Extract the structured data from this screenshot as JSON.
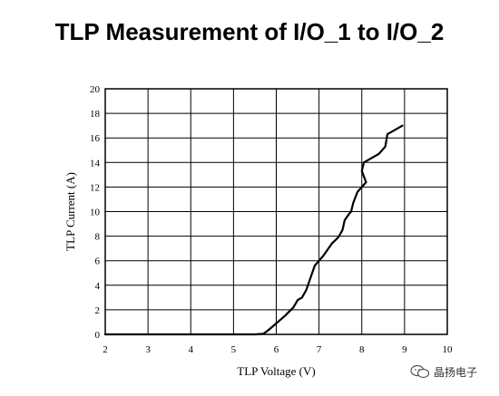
{
  "chart_data": {
    "type": "line",
    "title": "TLP Measurement of I/O_1 to I/O_2",
    "xlabel": "TLP Voltage (V)",
    "ylabel": "TLP Current (A)",
    "xlim": [
      2,
      10
    ],
    "ylim": [
      0,
      20
    ],
    "xticks": [
      "2",
      "3",
      "4",
      "5",
      "6",
      "7",
      "8",
      "9",
      "10"
    ],
    "yticks": [
      "0",
      "2",
      "4",
      "6",
      "8",
      "10",
      "12",
      "14",
      "16",
      "18",
      "20"
    ],
    "grid": true,
    "series": [
      {
        "x": [
          2.0,
          3.0,
          4.0,
          5.0,
          5.5,
          5.7,
          5.8,
          5.9,
          6.0,
          6.2,
          6.4,
          6.5,
          6.6,
          6.7,
          6.8,
          6.9,
          7.0,
          7.1,
          7.2,
          7.3,
          7.45,
          7.55,
          7.6,
          7.7,
          7.75,
          7.8,
          7.9,
          8.0,
          8.1,
          8.0,
          8.05,
          8.2,
          8.4,
          8.55,
          8.6,
          8.7,
          8.8,
          8.95
        ],
        "y": [
          0.0,
          0.0,
          0.0,
          0.0,
          0.0,
          0.05,
          0.3,
          0.6,
          0.9,
          1.5,
          2.2,
          2.8,
          3.0,
          3.6,
          4.6,
          5.6,
          6.0,
          6.4,
          6.9,
          7.4,
          7.9,
          8.5,
          9.3,
          9.8,
          10.0,
          10.7,
          11.6,
          12.0,
          12.4,
          13.3,
          14.0,
          14.3,
          14.7,
          15.3,
          16.3,
          16.5,
          16.7,
          17.0
        ]
      }
    ]
  },
  "watermark": {
    "text": "晶扬电子",
    "icon": "wechat-icon"
  }
}
